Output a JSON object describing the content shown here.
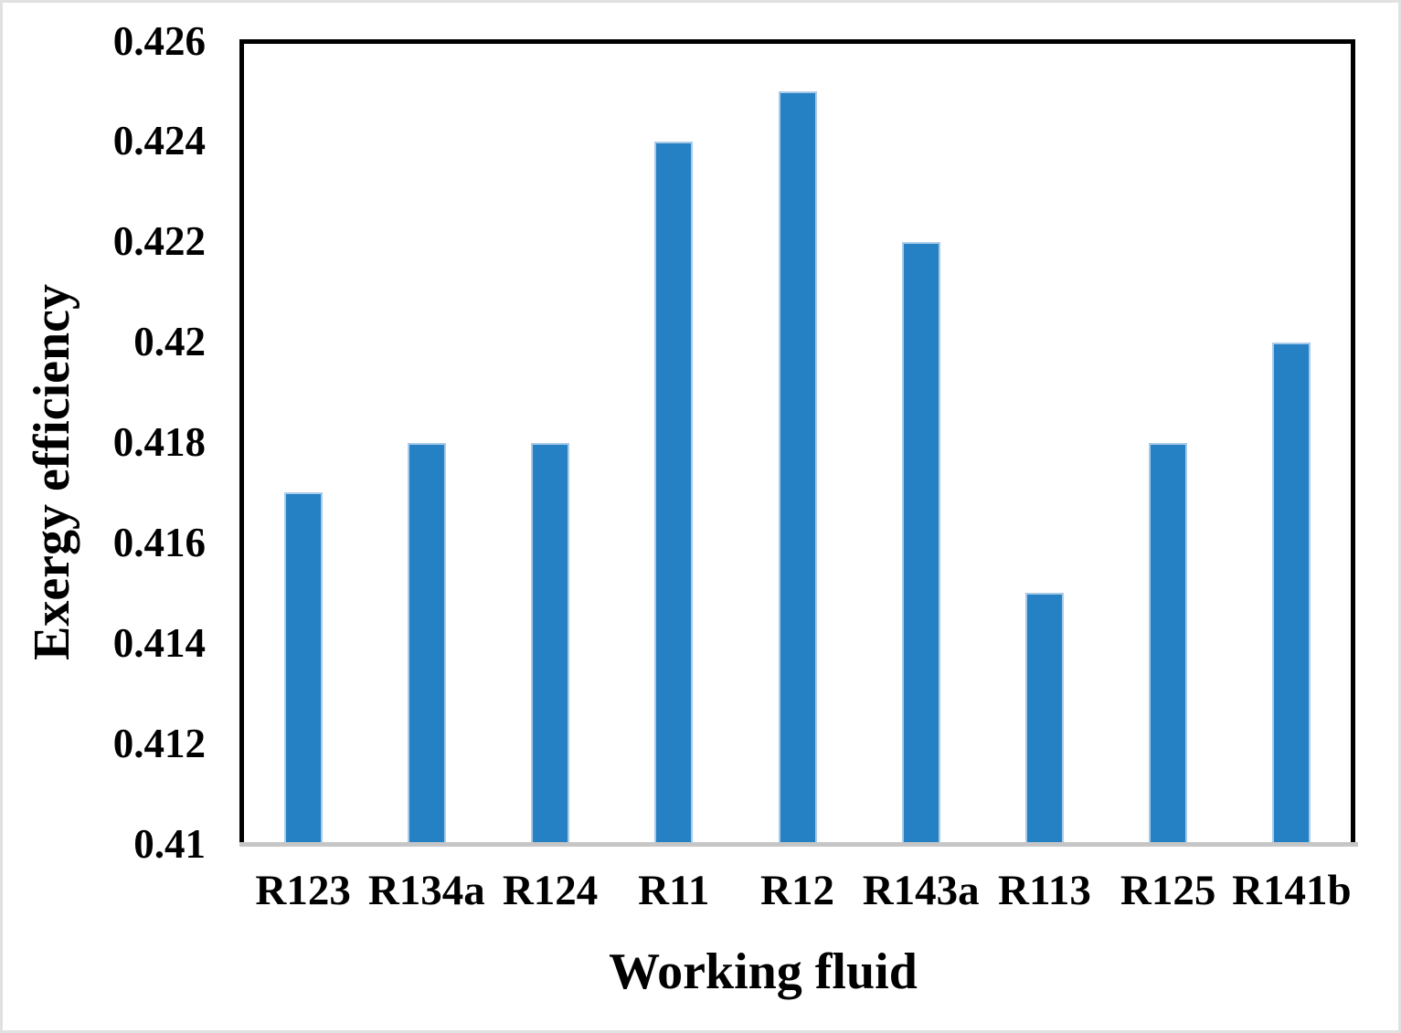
{
  "chart_data": {
    "type": "bar",
    "title": "",
    "xlabel": "Working fluid",
    "ylabel": "Exergy efficiency",
    "categories": [
      "R123",
      "R134a",
      "R124",
      "R11",
      "R12",
      "R143a",
      "R113",
      "R125",
      "R141b"
    ],
    "values": [
      0.417,
      0.418,
      0.418,
      0.424,
      0.425,
      0.422,
      0.415,
      0.418,
      0.42
    ],
    "ylim": [
      0.41,
      0.426
    ],
    "ytick_values": [
      0.41,
      0.412,
      0.414,
      0.416,
      0.418,
      0.42,
      0.422,
      0.424,
      0.426
    ],
    "ytick_labels": [
      "0.41",
      "0.412",
      "0.414",
      "0.416",
      "0.418",
      "0.42",
      "0.422",
      "0.424",
      "0.426"
    ],
    "grid": false,
    "legend": null,
    "colors": {
      "bar_fill": "#2580C4",
      "bar_border": "#A9CBE8",
      "axis_line": "#c6c6c6",
      "plot_border": "#000000",
      "text": "#000000",
      "figure_frame": "#e1e1e1",
      "background": "#ffffff"
    }
  }
}
